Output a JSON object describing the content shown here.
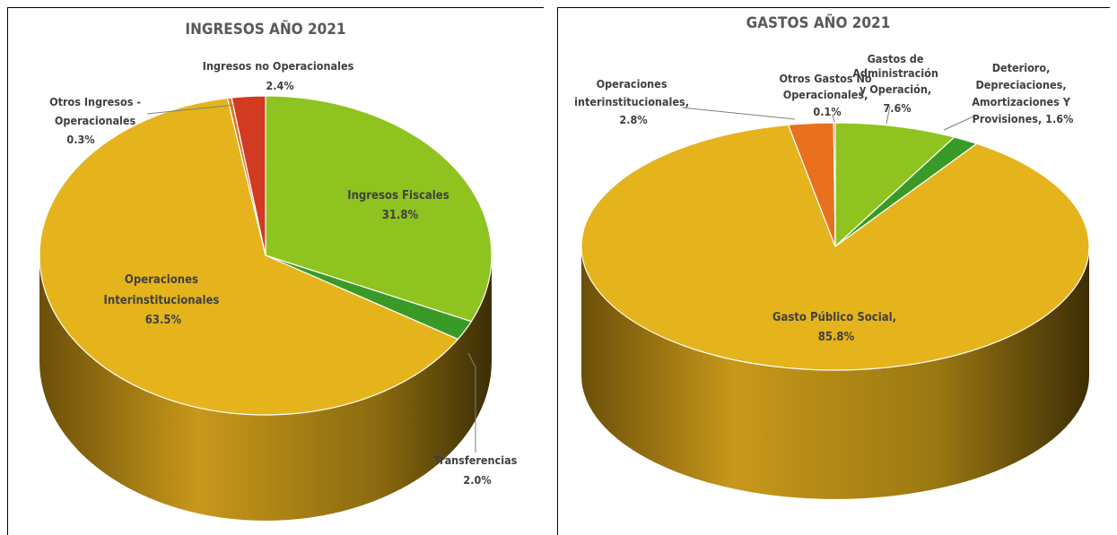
{
  "chart_data": [
    {
      "type": "pie",
      "title": "INGRESOS AÑO 2021",
      "slices": [
        {
          "name": "Ingresos Fiscales",
          "value": 31.8,
          "label": "31.8%",
          "color": "#8FC31F"
        },
        {
          "name": "Transferencias",
          "value": 2.0,
          "label": "2.0%",
          "color": "#3A9A28"
        },
        {
          "name": "Operaciones Interinstitucionales",
          "value": 63.5,
          "label": "63.5%",
          "color": "#E5B41C"
        },
        {
          "name": "Otros Ingresos - Operacionales",
          "value": 0.3,
          "label": "0.3%",
          "color": "#E07B2A"
        },
        {
          "name": "Ingresos no Operacionales",
          "value": 2.4,
          "label": "2.4%",
          "color": "#D23A22"
        }
      ]
    },
    {
      "type": "pie",
      "title": "GASTOS AÑO 2021",
      "slices": [
        {
          "name": "Gastos de Administración y Operación",
          "value": 7.6,
          "label": "7.6%",
          "color": "#8FC31F"
        },
        {
          "name": "Deterioro, Depreciaciones, Amortizaciones Y Provisiones",
          "value": 1.6,
          "label": "1.6%",
          "color": "#3A9A28"
        },
        {
          "name": "Gasto Público Social",
          "value": 85.8,
          "label": "85.8%",
          "color": "#E5B41C"
        },
        {
          "name": "Operaciones interinstitucionales",
          "value": 2.8,
          "label": "2.8%",
          "color": "#E8701E"
        },
        {
          "name": "Otros Gastos No Operacionales",
          "value": 0.1,
          "label": "0.1%",
          "color": "#D23A22"
        }
      ]
    }
  ],
  "labels": {
    "left": {
      "fiscales": [
        "Ingresos Fiscales",
        "31.8%"
      ],
      "transferencias": [
        "Transferencias",
        "2.0%"
      ],
      "operaciones": [
        "Operaciones",
        "Interinstitucionales",
        "63.5%"
      ],
      "otros": [
        "Otros Ingresos -",
        "Operacionales",
        "0.3%"
      ],
      "no_oper": [
        "Ingresos no Operacionales",
        "2.4%"
      ]
    },
    "right": {
      "admin": [
        "Gastos de",
        "Administración",
        "y Operación,",
        "7.6%"
      ],
      "deterioro": [
        "Deterioro,",
        "Depreciaciones,",
        "Amortizaciones Y",
        "Provisiones, 1.6%"
      ],
      "gasto": [
        "Gasto Público Social,",
        "85.8%"
      ],
      "operaciones": [
        "Operaciones",
        "interinstitucionales,",
        "2.8%"
      ],
      "otros": [
        "Otros Gastos No",
        "Operacionales,",
        "0.1%"
      ]
    }
  }
}
